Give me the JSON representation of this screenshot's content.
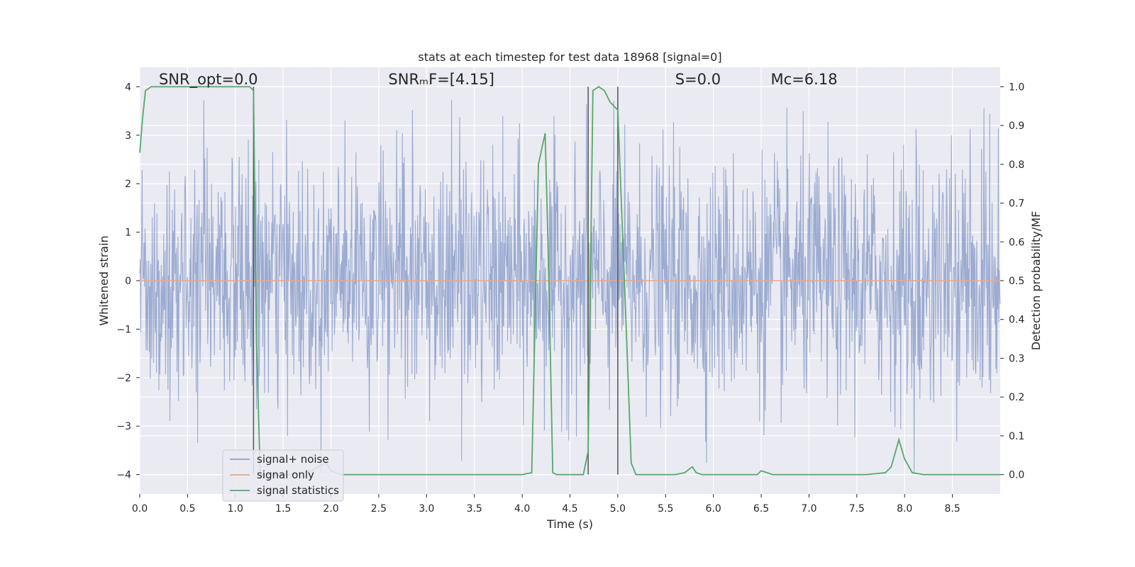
{
  "chart_data": {
    "type": "line",
    "title": "stats at each timestep for test data 18968 [signal=0]",
    "xlabel": "Time (s)",
    "ylabel": "Whitened strain",
    "ylabel_right": "Detection probability/MF",
    "xlim": [
      0.0,
      9.0
    ],
    "ylim": [
      -4.4,
      4.4
    ],
    "ylim_right": [
      -0.05,
      1.05
    ],
    "xticks": [
      0.0,
      0.5,
      1.0,
      1.5,
      2.0,
      2.5,
      3.0,
      3.5,
      4.0,
      4.5,
      5.0,
      5.5,
      6.0,
      6.5,
      7.0,
      7.5,
      8.0,
      8.5
    ],
    "xtick_labels": [
      "0.0",
      "0.5",
      "1.0",
      "1.5",
      "2.0",
      "2.5",
      "3.0",
      "3.5",
      "4.0",
      "4.5",
      "5.0",
      "5.5",
      "6.0",
      "6.5",
      "7.0",
      "7.5",
      "8.0",
      "8.5"
    ],
    "yticks": [
      -4,
      -3,
      -2,
      -1,
      0,
      1,
      2,
      3,
      4
    ],
    "ytick_labels": [
      "−4",
      "−3",
      "−2",
      "−1",
      "0",
      "1",
      "2",
      "3",
      "4"
    ],
    "yticks_right": [
      0.0,
      0.1,
      0.2,
      0.3,
      0.4,
      0.5,
      0.6,
      0.7,
      0.8,
      0.9,
      1.0
    ],
    "ytick_labels_right": [
      "0.0",
      "0.1",
      "0.2",
      "0.3",
      "0.4",
      "0.5",
      "0.6",
      "0.7",
      "0.8",
      "0.9",
      "1.0"
    ],
    "grid": true,
    "legend_position": "lower-left",
    "annotations": [
      {
        "text": "SNR_opt=0.0",
        "x": 0.2,
        "y": 4.05
      },
      {
        "text": "SNRₘF=[4.15]",
        "x": 2.6,
        "y": 4.05
      },
      {
        "text": "S=0.0",
        "x": 5.6,
        "y": 4.05
      },
      {
        "text": "Mc=6.18",
        "x": 6.6,
        "y": 4.05
      }
    ],
    "vertical_lines": [
      1.19,
      4.69,
      5.0
    ],
    "series": [
      {
        "name": "signal+ noise",
        "color": "#8da0cb",
        "axis": "left",
        "description_type": "noise",
        "amplitude_typical": 1.6,
        "amplitude_max": 4.0,
        "points_count": 1800
      },
      {
        "name": "signal only",
        "color": "#e8a88a",
        "axis": "left",
        "x": [
          0.0,
          9.0
        ],
        "y": [
          0.0,
          0.0
        ]
      },
      {
        "name": "signal statistics",
        "color": "#55a868",
        "axis": "right",
        "x": [
          0.0,
          0.03,
          0.06,
          0.12,
          0.5,
          1.0,
          1.15,
          1.19,
          1.22,
          1.26,
          1.3,
          1.35,
          1.6,
          1.8,
          1.9,
          1.95,
          2.0,
          2.1,
          2.3,
          2.6,
          3.0,
          3.5,
          4.0,
          4.1,
          4.17,
          4.24,
          4.27,
          4.32,
          4.36,
          4.45,
          4.6,
          4.64,
          4.69,
          4.74,
          4.8,
          4.86,
          4.92,
          5.0,
          5.1,
          5.14,
          5.19,
          5.3,
          5.6,
          5.7,
          5.78,
          5.82,
          5.88,
          6.0,
          6.3,
          6.46,
          6.5,
          6.56,
          6.62,
          6.8,
          7.0,
          7.6,
          7.8,
          7.86,
          7.94,
          8.0,
          8.08,
          8.2,
          8.6,
          9.0
        ],
        "y": [
          0.83,
          0.92,
          0.99,
          1.0,
          1.0,
          1.0,
          1.0,
          0.99,
          0.35,
          0.0,
          0.0,
          0.0,
          0.0,
          0.01,
          0.025,
          0.03,
          0.01,
          0.0,
          0.0,
          0.0,
          0.0,
          0.0,
          0.0,
          0.005,
          0.8,
          0.88,
          0.6,
          0.005,
          0.0,
          0.0,
          0.0,
          0.0,
          0.06,
          0.99,
          1.0,
          0.99,
          0.96,
          0.94,
          0.3,
          0.03,
          0.0,
          0.0,
          0.0,
          0.005,
          0.02,
          0.005,
          0.0,
          0.0,
          0.0,
          0.0,
          0.01,
          0.005,
          0.0,
          0.0,
          0.0,
          0.0,
          0.005,
          0.02,
          0.09,
          0.04,
          0.005,
          0.0,
          0.0,
          0.0
        ]
      }
    ]
  }
}
